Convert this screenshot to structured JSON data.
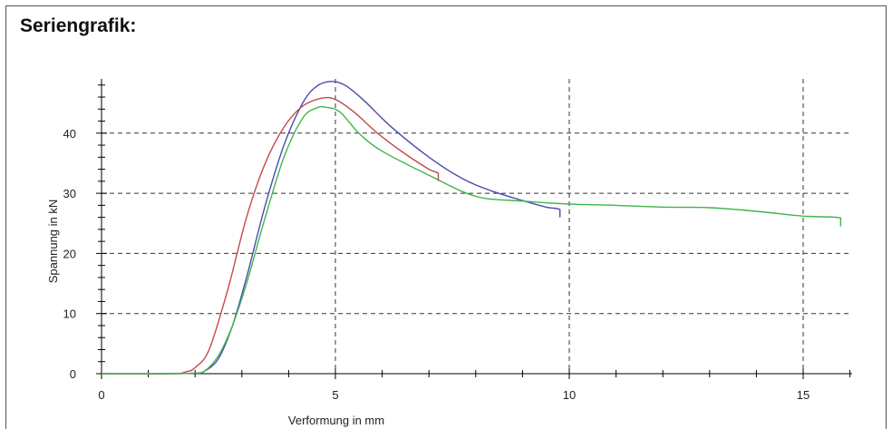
{
  "header": {
    "title": "Seriengrafik:"
  },
  "chart_data": {
    "type": "line",
    "xlabel": "Verformung in mm",
    "ylabel": "Spannung in kN",
    "xlim": [
      0,
      16
    ],
    "ylim": [
      0,
      49
    ],
    "xticks": [
      0,
      5,
      10,
      15
    ],
    "yticks": [
      0,
      10,
      20,
      30,
      40
    ],
    "grid": "dashed",
    "series": [
      {
        "color": "#4b4bb0",
        "x": [
          0,
          1.5,
          2.0,
          2.2,
          2.5,
          2.8,
          3.1,
          3.5,
          3.9,
          4.3,
          4.6,
          4.9,
          5.2,
          5.6,
          6.2,
          7.0,
          7.7,
          8.3,
          9.0,
          9.5,
          9.8,
          9.8
        ],
        "y": [
          0,
          0,
          0.1,
          0.4,
          2.5,
          8,
          16,
          28,
          38,
          45,
          47.8,
          48.6,
          48.0,
          45.5,
          41,
          36,
          32.5,
          30.5,
          28.8,
          27.7,
          27.3,
          26
        ]
      },
      {
        "color": "#c24a4a",
        "x": [
          0,
          1.5,
          1.8,
          2.0,
          2.3,
          2.7,
          3.1,
          3.5,
          3.9,
          4.3,
          4.7,
          5.0,
          5.4,
          5.9,
          6.5,
          7.0,
          7.2,
          7.2
        ],
        "y": [
          0,
          0,
          0.3,
          1,
          4,
          14,
          26,
          35,
          41,
          44.5,
          45.8,
          45.6,
          43.5,
          40,
          36.5,
          34,
          33.3,
          32
        ]
      },
      {
        "color": "#3fb54a",
        "x": [
          0,
          1.5,
          2.0,
          2.2,
          2.5,
          2.8,
          3.1,
          3.5,
          3.9,
          4.3,
          4.6,
          4.8,
          5.1,
          5.5,
          6.0,
          7.0,
          8.0,
          9.0,
          10.0,
          11.0,
          12.0,
          13.0,
          14.0,
          15.0,
          15.8,
          15.8
        ],
        "y": [
          0,
          0,
          0.1,
          0.4,
          3,
          8,
          15,
          26,
          36,
          42.5,
          44.2,
          44.3,
          43.5,
          40,
          37,
          33,
          29.5,
          28.7,
          28.2,
          28.0,
          27.7,
          27.6,
          27.0,
          26.2,
          25.9,
          24.5
        ]
      }
    ]
  }
}
